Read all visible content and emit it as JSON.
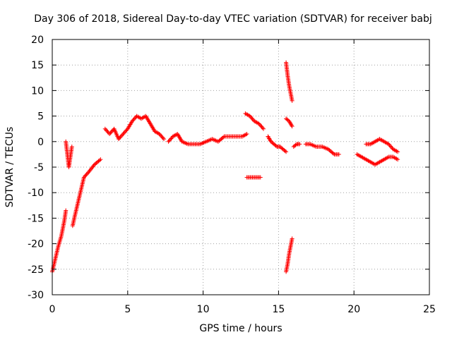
{
  "chart_data": {
    "type": "scatter",
    "title": "Day 306 of 2018, Sidereal Day-to-day VTEC variation (SDTVAR) for receiver babj",
    "xlabel": "GPS time / hours",
    "ylabel": "SDTVAR / TECUs",
    "xlim": [
      0,
      25
    ],
    "ylim": [
      -30,
      20
    ],
    "x_ticks": [
      0,
      5,
      10,
      15,
      20,
      25
    ],
    "y_ticks": [
      -30,
      -25,
      -20,
      -15,
      -10,
      -5,
      0,
      5,
      10,
      15,
      20
    ],
    "grid": true,
    "marker": "plus",
    "series_color": "#ff0000",
    "segments": [
      {
        "x": [
          0.0,
          0.2,
          0.4,
          0.6,
          0.8,
          0.9
        ],
        "y": [
          -25.5,
          -23.0,
          -20.5,
          -18.5,
          -15.5,
          -13.5
        ]
      },
      {
        "x": [
          0.9,
          1.0,
          1.1,
          1.2,
          1.3
        ],
        "y": [
          0.0,
          -2.5,
          -5.0,
          -3.0,
          -1.0
        ]
      },
      {
        "x": [
          1.35,
          1.5,
          1.7,
          1.9,
          2.1,
          2.4,
          2.8,
          3.2
        ],
        "y": [
          -16.5,
          -14.5,
          -12.0,
          -9.5,
          -7.0,
          -6.0,
          -4.5,
          -3.5
        ]
      },
      {
        "x": [
          3.5,
          3.8,
          4.1,
          4.4,
          4.7,
          5.0,
          5.3,
          5.6,
          5.9,
          6.2,
          6.5,
          6.8,
          7.1,
          7.4
        ],
        "y": [
          2.5,
          1.5,
          2.5,
          0.5,
          1.5,
          2.5,
          4.0,
          5.0,
          4.5,
          5.0,
          3.5,
          2.0,
          1.5,
          0.5
        ]
      },
      {
        "x": [
          7.7,
          8.0,
          8.3,
          8.6,
          9.0,
          9.4,
          9.8,
          10.2,
          10.6,
          11.0,
          11.4,
          11.8,
          12.2,
          12.6,
          12.9
        ],
        "y": [
          0.0,
          1.0,
          1.5,
          0.0,
          -0.5,
          -0.5,
          -0.5,
          0.0,
          0.5,
          0.0,
          1.0,
          1.0,
          1.0,
          1.0,
          1.5
        ]
      },
      {
        "x": [
          12.8,
          13.1,
          13.4,
          13.7,
          14.0
        ],
        "y": [
          5.5,
          5.0,
          4.0,
          3.5,
          2.5
        ]
      },
      {
        "x": [
          12.9,
          13.2,
          13.5,
          13.8
        ],
        "y": [
          -7.0,
          -7.0,
          -7.0,
          -7.0
        ]
      },
      {
        "x": [
          14.3,
          14.5,
          14.7,
          14.9,
          15.1,
          15.3,
          15.5
        ],
        "y": [
          1.0,
          0.0,
          -0.5,
          -1.0,
          -1.0,
          -1.5,
          -2.0
        ]
      },
      {
        "x": [
          15.5,
          15.6,
          15.7,
          15.8,
          15.9
        ],
        "y": [
          15.5,
          13.0,
          11.0,
          9.5,
          8.0
        ]
      },
      {
        "x": [
          15.5,
          15.7,
          15.9
        ],
        "y": [
          4.5,
          4.0,
          3.0
        ]
      },
      {
        "x": [
          15.5,
          15.6,
          15.7,
          15.8,
          15.9
        ],
        "y": [
          -25.5,
          -24.0,
          -22.0,
          -20.5,
          -19.0
        ]
      },
      {
        "x": [
          16.0,
          16.2,
          16.4
        ],
        "y": [
          -1.0,
          -0.5,
          -0.5
        ]
      },
      {
        "x": [
          16.8,
          17.1,
          17.5,
          17.9,
          18.3,
          18.7,
          19.0
        ],
        "y": [
          -0.5,
          -0.5,
          -1.0,
          -1.0,
          -1.5,
          -2.5,
          -2.5
        ]
      },
      {
        "x": [
          20.2,
          20.5,
          20.8,
          21.1,
          21.4,
          21.7,
          22.0,
          22.3,
          22.6,
          22.9
        ],
        "y": [
          -2.5,
          -3.0,
          -3.5,
          -4.0,
          -4.5,
          -4.0,
          -3.5,
          -3.0,
          -3.0,
          -3.5
        ]
      },
      {
        "x": [
          20.8,
          21.1,
          21.4,
          21.7,
          22.0,
          22.3,
          22.6,
          22.9
        ],
        "y": [
          -0.5,
          -0.5,
          0.0,
          0.5,
          0.0,
          -0.5,
          -1.5,
          -2.0
        ]
      }
    ]
  }
}
